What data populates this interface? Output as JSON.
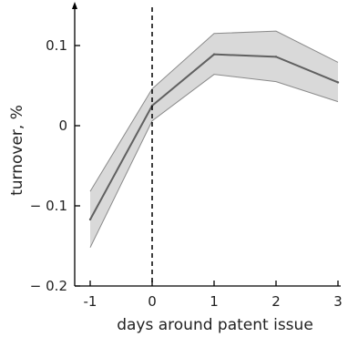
{
  "chart_data": {
    "type": "line",
    "title": "",
    "xlabel": "days around patent issue",
    "ylabel": "turnover, %",
    "x": [
      -1,
      0,
      1,
      2,
      3
    ],
    "x_tick_labels": [
      "-1",
      "0",
      "1",
      "2",
      "3"
    ],
    "xlim": [
      -1.2,
      3.1
    ],
    "ylim": [
      -0.2,
      0.15
    ],
    "y_ticks": [
      0.1,
      0,
      -0.1,
      -0.2
    ],
    "y_tick_labels": [
      "0.1",
      "0",
      "− 0.1",
      "− 0.2"
    ],
    "series": [
      {
        "values": [
          -0.117,
          0.025,
          0.089,
          0.086,
          0.054
        ],
        "lower": [
          -0.152,
          0.006,
          0.064,
          0.055,
          0.03
        ],
        "upper": [
          -0.082,
          0.046,
          0.115,
          0.118,
          0.079
        ]
      }
    ],
    "vline_x": 0,
    "grid": false,
    "legend": "none",
    "colors": {
      "line": "#606060",
      "band": "#d9d9d9",
      "band_edge": "#8a8a8a",
      "axis": "#000000"
    }
  }
}
